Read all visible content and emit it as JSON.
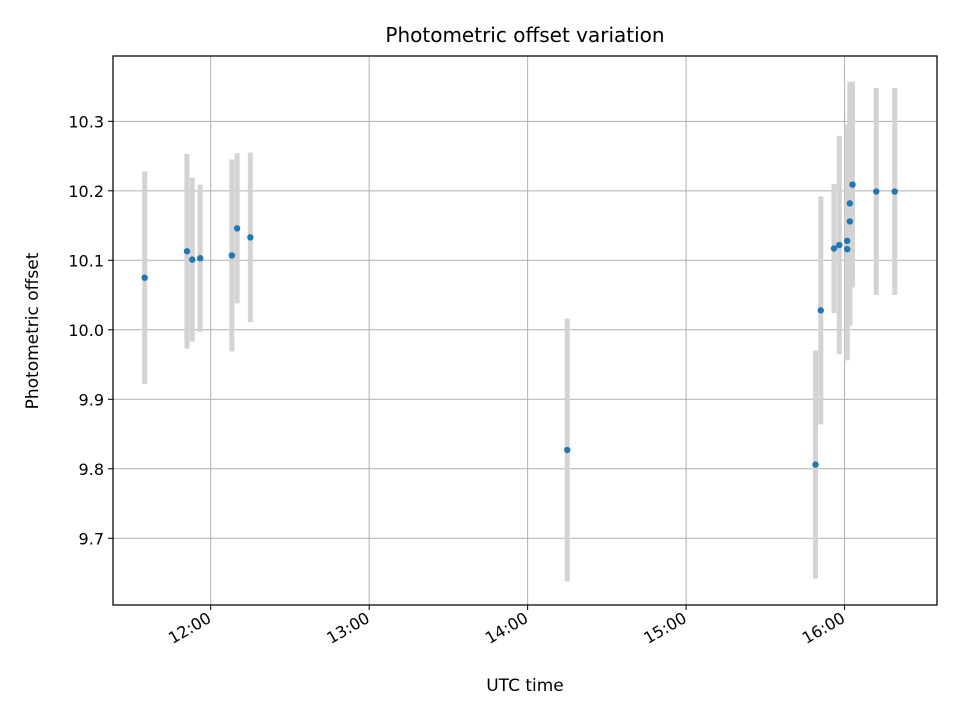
{
  "chart_data": {
    "type": "scatter",
    "title": "Photometric offset variation",
    "xlabel": "UTC time",
    "ylabel": "Photometric offset",
    "x_ticks": [
      "12:00",
      "13:00",
      "14:00",
      "15:00",
      "16:00"
    ],
    "y_ticks": [
      "9.7",
      "9.8",
      "9.9",
      "10.0",
      "10.1",
      "10.2",
      "10.3"
    ],
    "xlim": [
      "11:23",
      "16:35"
    ],
    "ylim": [
      9.604,
      10.394
    ],
    "grid": true,
    "colors": {
      "marker": "#1f77b4",
      "errorbar": "#d3d3d3",
      "grid": "#b0b0b0"
    },
    "points": [
      {
        "t": "11:35",
        "y": 10.075,
        "err": 0.153
      },
      {
        "t": "11:51",
        "y": 10.113,
        "err": 0.14
      },
      {
        "t": "11:53",
        "y": 10.101,
        "err": 0.118
      },
      {
        "t": "11:56",
        "y": 10.103,
        "err": 0.106
      },
      {
        "t": "12:08",
        "y": 10.107,
        "err": 0.138
      },
      {
        "t": "12:10",
        "y": 10.146,
        "err": 0.108
      },
      {
        "t": "12:15",
        "y": 10.133,
        "err": 0.122
      },
      {
        "t": "14:15",
        "y": 9.827,
        "err": 0.189
      },
      {
        "t": "15:49",
        "y": 9.806,
        "err": 0.164
      },
      {
        "t": "15:51",
        "y": 10.028,
        "err": 0.164
      },
      {
        "t": "15:56",
        "y": 10.117,
        "err": 0.093
      },
      {
        "t": "15:58",
        "y": 10.122,
        "err": 0.157
      },
      {
        "t": "16:01",
        "y": 10.128,
        "err": 0.167
      },
      {
        "t": "16:01",
        "y": 10.116,
        "err": 0.16
      },
      {
        "t": "16:02",
        "y": 10.156,
        "err": 0.15
      },
      {
        "t": "16:02",
        "y": 10.182,
        "err": 0.175
      },
      {
        "t": "16:03",
        "y": 10.209,
        "err": 0.148
      },
      {
        "t": "16:12",
        "y": 10.199,
        "err": 0.149
      },
      {
        "t": "16:19",
        "y": 10.199,
        "err": 0.149
      }
    ]
  }
}
